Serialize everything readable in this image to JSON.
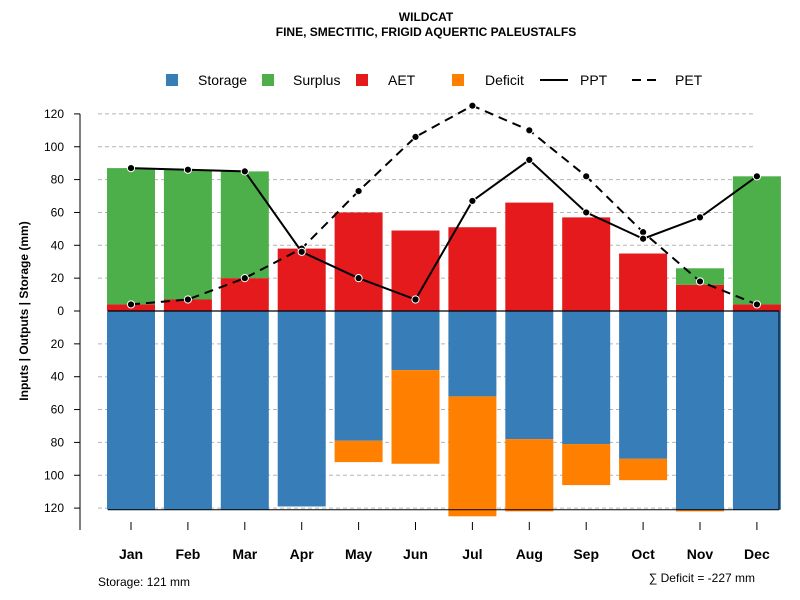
{
  "chart_data": {
    "type": "bar",
    "title": "WILDCAT",
    "subtitle": "FINE, SMECTITIC, FRIGID AQUERTIC PALEUSTALFS",
    "ylabel": "Inputs | Outputs | Storage    (mm)",
    "categories": [
      "Jan",
      "Feb",
      "Mar",
      "Apr",
      "May",
      "Jun",
      "Jul",
      "Aug",
      "Sep",
      "Oct",
      "Nov",
      "Dec"
    ],
    "ylim": [
      -125,
      130
    ],
    "y_ticks": [
      120,
      100,
      80,
      60,
      40,
      20,
      0,
      -20,
      -40,
      -60,
      -80,
      -100,
      -120
    ],
    "y_tick_labels": [
      "120",
      "100",
      "80",
      "60",
      "40",
      "20",
      "0",
      "20",
      "40",
      "60",
      "80",
      "100",
      "120"
    ],
    "series": [
      {
        "name": "Storage",
        "color": "#377EB8",
        "values": [
          121,
          121,
          121,
          119,
          79,
          36,
          52,
          78,
          81,
          90,
          121,
          121
        ]
      },
      {
        "name": "Surplus",
        "color": "#4DAF4A",
        "values": [
          83,
          79,
          65,
          0,
          0,
          0,
          0,
          0,
          0,
          0,
          10,
          78
        ]
      },
      {
        "name": "AET",
        "color": "#E41A1C",
        "values": [
          4,
          7,
          20,
          38,
          60,
          49,
          51,
          66,
          57,
          35,
          16,
          4
        ]
      },
      {
        "name": "Deficit",
        "color": "#FF7F00",
        "values": [
          0,
          0,
          0,
          0,
          13,
          57,
          73,
          44,
          25,
          13,
          1,
          0
        ]
      },
      {
        "name": "PPT",
        "color": "#000000",
        "style": "solid",
        "values": [
          87,
          86,
          85,
          36,
          20,
          7,
          67,
          92,
          60,
          44,
          57,
          82
        ]
      },
      {
        "name": "PET",
        "color": "#000000",
        "style": "dashed",
        "values": [
          4,
          7,
          20,
          38,
          73,
          106,
          125,
          110,
          82,
          48,
          18,
          4
        ]
      }
    ],
    "legend": {
      "position": "top",
      "items": [
        "Storage",
        "Surplus",
        "AET",
        "Deficit",
        "PPT",
        "PET"
      ]
    },
    "storage_note": "Storage: 121 mm",
    "deficit_note": "∑ Deficit = -227 mm",
    "grid": true
  }
}
